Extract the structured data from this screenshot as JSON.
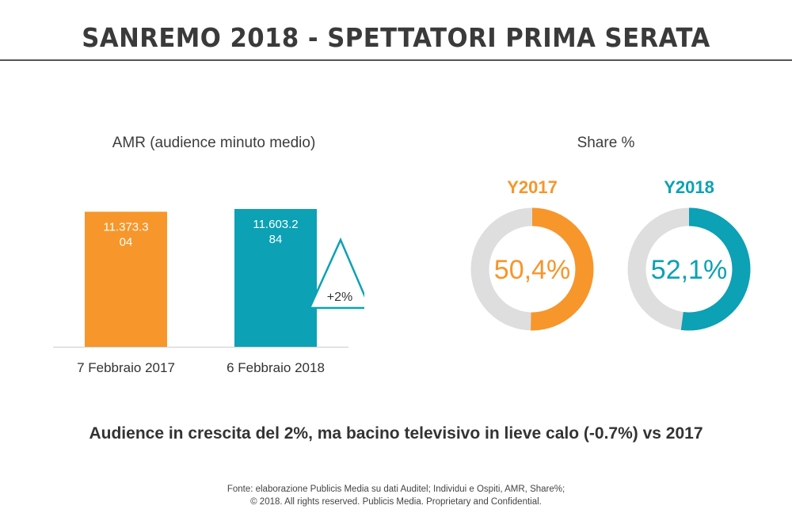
{
  "title": "SANREMO 2018 - SPETTATORI PRIMA SERATA",
  "amr_title": "AMR (audience minuto medio)",
  "share_title": "Share %",
  "growth_label": "+2%",
  "conclusion": "Audience in crescita del 2%, ma bacino televisivo in lieve calo (-0.7%) vs 2017",
  "footer": {
    "line1": "Fonte: elaborazione Publicis Media su dati Auditel; Individui e Ospiti, AMR, Share%;",
    "line2": "© 2018. All rights reserved. Publicis Media. Proprietary and Confidential."
  },
  "colors": {
    "y2017": "#f7962a",
    "y2018": "#0ca1b4",
    "track": "#dedede",
    "axis": "#cccccc"
  },
  "chart_data": [
    {
      "type": "bar",
      "title": "AMR (audience minuto medio)",
      "categories": [
        "7 Febbraio 2017",
        "6 Febbraio 2018"
      ],
      "values": [
        11373304,
        11603284
      ],
      "value_labels": [
        [
          "11.373.3",
          "04"
        ],
        [
          "11.603.2",
          "84"
        ]
      ],
      "ylim": [
        0,
        11603284
      ],
      "annotation": "+2%"
    },
    {
      "type": "pie",
      "title": "Share %",
      "series": [
        {
          "name": "Y2017",
          "value": 50.4,
          "label": "50,4%"
        },
        {
          "name": "Y2018",
          "value": 52.1,
          "label": "52,1%"
        }
      ]
    }
  ]
}
